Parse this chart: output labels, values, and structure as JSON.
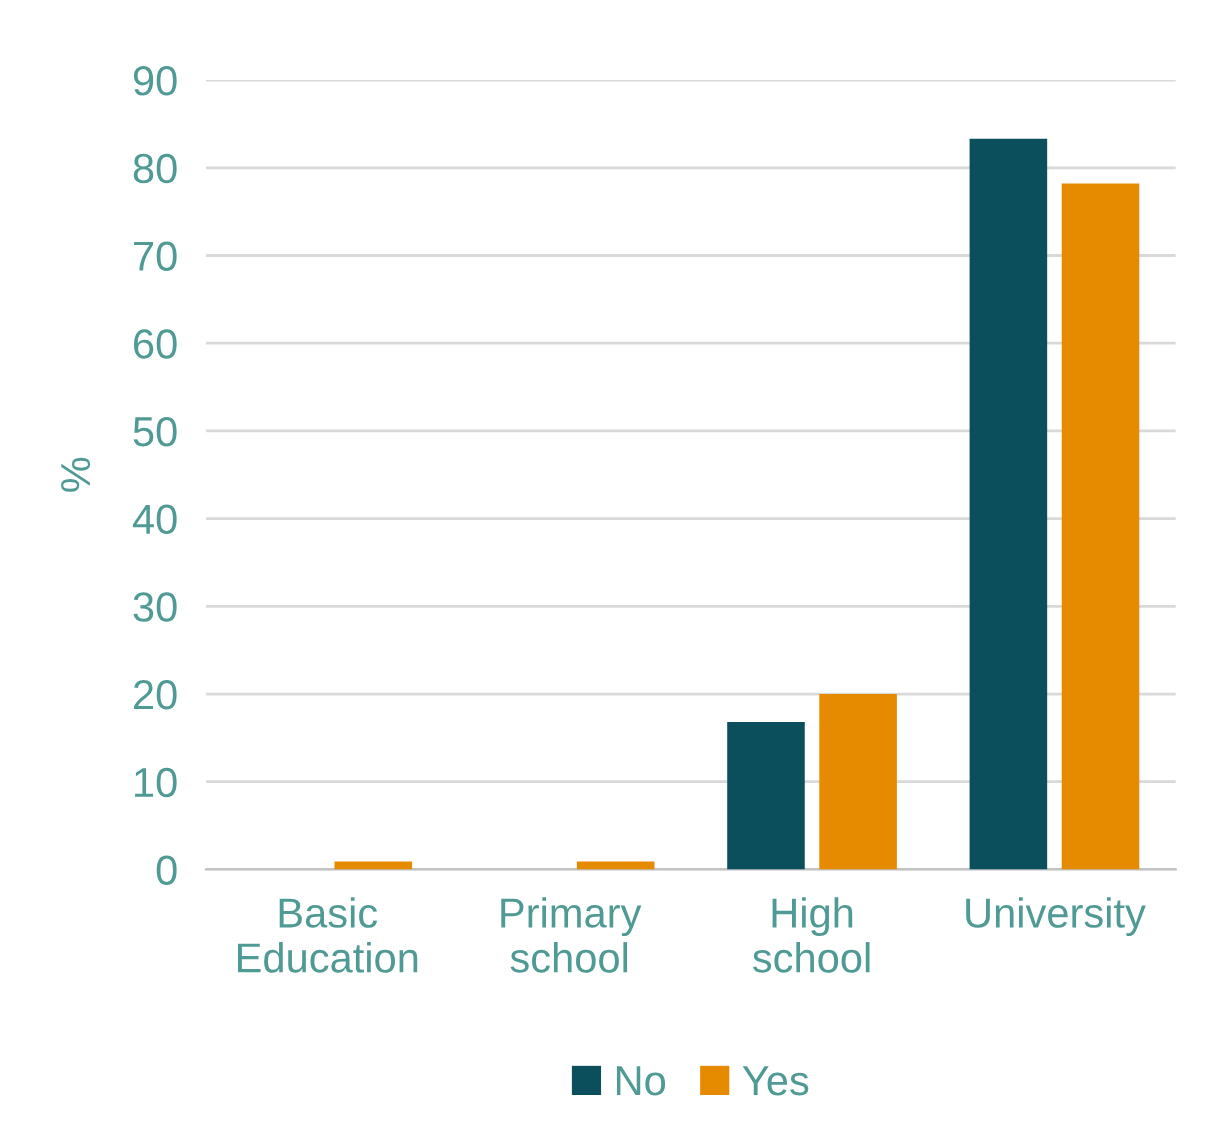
{
  "chart_data": {
    "type": "bar",
    "ylabel": "%",
    "categories": [
      "Basic\nEducation",
      "Primary\nschool",
      "High\nschool",
      "University"
    ],
    "series": [
      {
        "name": "No",
        "color": "#0b4f5c",
        "values": [
          0,
          0,
          16.8,
          83.3
        ]
      },
      {
        "name": "Yes",
        "color": "#e68a00",
        "values": [
          0.9,
          0.9,
          20.0,
          78.2
        ]
      }
    ],
    "ylim": [
      0,
      90
    ],
    "yticks": [
      0,
      10,
      20,
      30,
      40,
      50,
      60,
      70,
      80,
      90
    ],
    "grid": "y",
    "legend": "bottom"
  }
}
